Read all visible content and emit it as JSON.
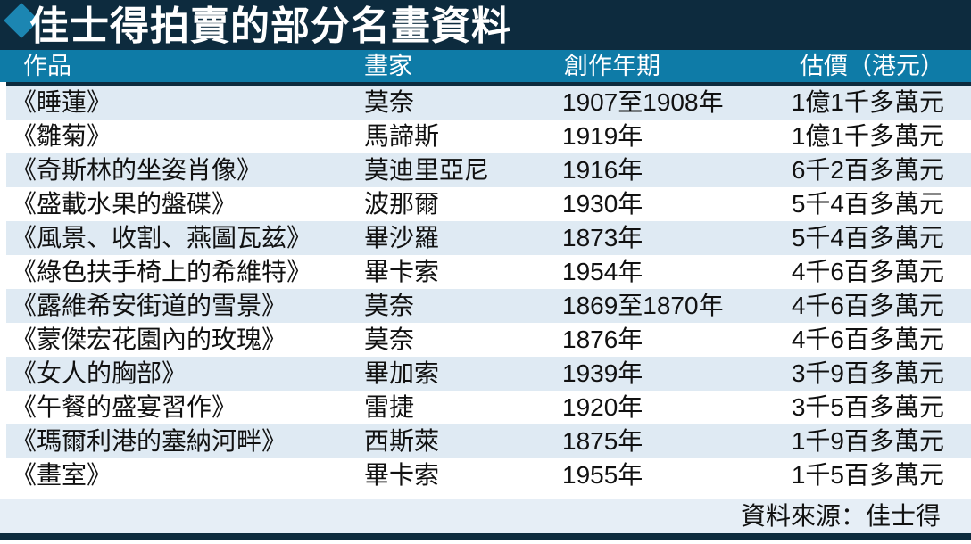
{
  "colors": {
    "navy": "#0d2b3e",
    "header_teal": "#0e7ba7",
    "diamond": "#1c86b2",
    "row_alt_blue": "#dfeaf3",
    "source_row_blue": "#e6eef6",
    "text": "#111111",
    "header_text": "#ffffff"
  },
  "chart_data": {
    "type": "table",
    "title": "佳士得拍賣的部分名畫資料",
    "columns": [
      "作品",
      "畫家",
      "創作年期",
      "估價（港元）"
    ],
    "rows": [
      [
        "《睡蓮》",
        "莫奈",
        "1907至1908年",
        "1億1千多萬元"
      ],
      [
        "《雛菊》",
        "馬諦斯",
        "1919年",
        "1億1千多萬元"
      ],
      [
        "《奇斯林的坐姿肖像》",
        "莫迪里亞尼",
        "1916年",
        "6千2百多萬元"
      ],
      [
        "《盛載水果的盤碟》",
        "波那爾",
        "1930年",
        "5千4百多萬元"
      ],
      [
        "《風景、收割、燕圖瓦兹》",
        "畢沙羅",
        "1873年",
        "5千4百多萬元"
      ],
      [
        "《綠色扶手椅上的希維特》",
        "畢卡索",
        "1954年",
        "4千6百多萬元"
      ],
      [
        "《露維希安街道的雪景》",
        "莫奈",
        "1869至1870年",
        "4千6百多萬元"
      ],
      [
        "《蒙傑宏花園內的玫瑰》",
        "莫奈",
        "1876年",
        "4千6百多萬元"
      ],
      [
        "《女人的胸部》",
        "畢加索",
        "1939年",
        "3千9百多萬元"
      ],
      [
        "《午餐的盛宴習作》",
        "雷捷",
        "1920年",
        "3千5百多萬元"
      ],
      [
        "《瑪爾利港的塞納河畔》",
        "西斯萊",
        "1875年",
        "1千9百多萬元"
      ],
      [
        "《畫室》",
        "畢卡索",
        "1955年",
        "1千5百多萬元"
      ]
    ],
    "source": "資料來源：佳士得",
    "layout": {
      "zebra_striping": true,
      "header_position": "top"
    }
  }
}
